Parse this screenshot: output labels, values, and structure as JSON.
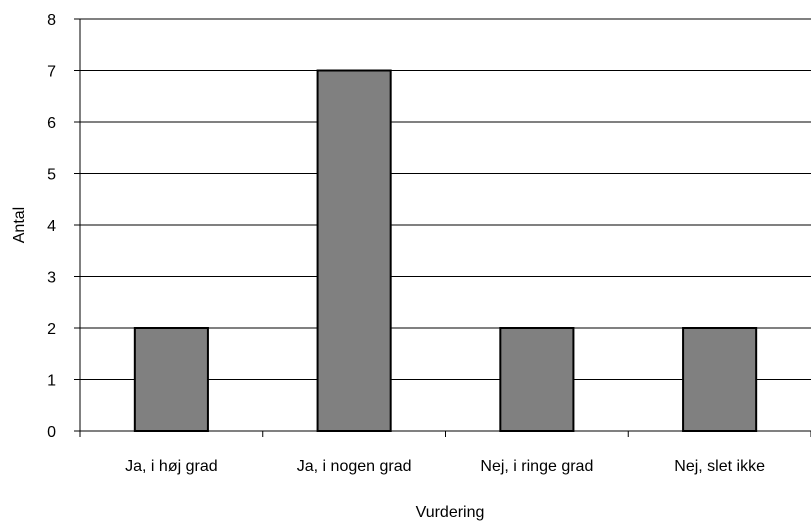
{
  "chart_data": {
    "type": "bar",
    "categories": [
      "Ja, i høj grad",
      "Ja, i nogen grad",
      "Nej, i ringe grad",
      "Nej, slet ikke"
    ],
    "values": [
      2,
      7,
      2,
      2
    ],
    "title": "",
    "xlabel": "Vurdering",
    "ylabel": "Antal",
    "ylim": [
      0,
      8
    ],
    "yticks": [
      0,
      1,
      2,
      3,
      4,
      5,
      6,
      7,
      8
    ],
    "grid": true,
    "legend": "none",
    "bar_color": "#808080",
    "bar_edge_color": "#000000",
    "grid_color": "#000000"
  }
}
